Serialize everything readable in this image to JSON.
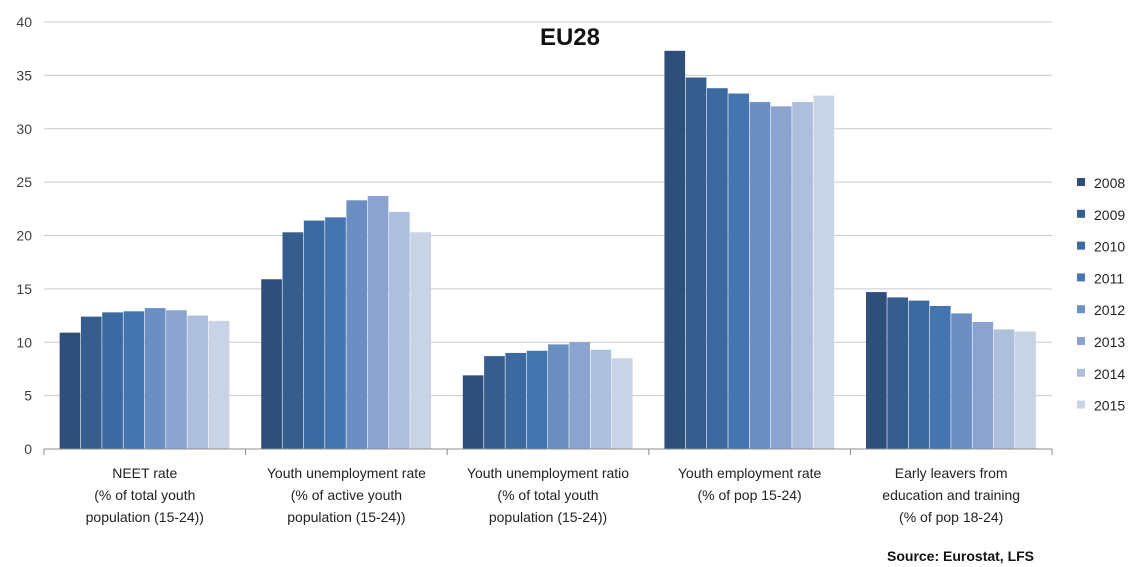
{
  "chart_data": {
    "type": "bar",
    "title": "EU28",
    "categories": [
      [
        "NEET rate",
        "(% of total youth",
        "population (15-24))"
      ],
      [
        "Youth unemployment rate",
        "(% of active youth",
        "population (15-24))"
      ],
      [
        "Youth unemployment ratio",
        "(% of total youth",
        "population (15-24))"
      ],
      [
        "Youth employment rate",
        "(% of pop 15-24)"
      ],
      [
        "Early leavers from",
        "education and training",
        "(% of pop 18-24)"
      ]
    ],
    "ylim": [
      0,
      40
    ],
    "yticks": [
      "0",
      "5",
      "10",
      "15",
      "20",
      "25",
      "30",
      "35",
      "40"
    ],
    "grid": true,
    "legend_position": "right",
    "series": [
      {
        "name": "2008",
        "color": "#2f4f7a",
        "values": [
          10.9,
          15.9,
          6.9,
          37.3,
          14.7
        ]
      },
      {
        "name": "2009",
        "color": "#355d8e",
        "values": [
          12.4,
          20.3,
          8.7,
          34.8,
          14.2
        ]
      },
      {
        "name": "2010",
        "color": "#3b69a0",
        "values": [
          12.8,
          21.4,
          9.0,
          33.8,
          13.9
        ]
      },
      {
        "name": "2011",
        "color": "#4575b1",
        "values": [
          12.9,
          21.7,
          9.2,
          33.3,
          13.4
        ]
      },
      {
        "name": "2012",
        "color": "#6c8fc3",
        "values": [
          13.2,
          23.3,
          9.8,
          32.5,
          12.7
        ]
      },
      {
        "name": "2013",
        "color": "#8aa4cf",
        "values": [
          13.0,
          23.7,
          10.0,
          32.1,
          11.9
        ]
      },
      {
        "name": "2014",
        "color": "#aebfdd",
        "values": [
          12.5,
          22.2,
          9.3,
          32.5,
          11.2
        ]
      },
      {
        "name": "2015",
        "color": "#c8d3e6",
        "values": [
          12.0,
          20.3,
          8.5,
          33.1,
          11.0
        ]
      }
    ]
  },
  "source": "Source: Eurostat, LFS"
}
